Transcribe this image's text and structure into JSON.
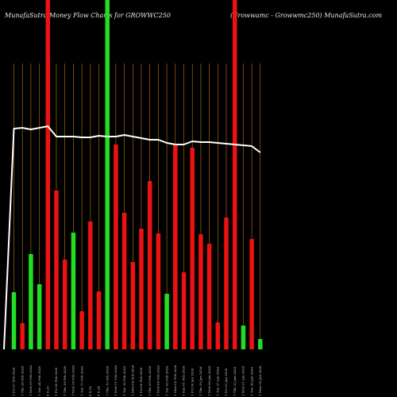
{
  "chart_data": {
    "type": "bar",
    "title_left": "MunafaSutra  Money Flow  Charts for GROWWC250",
    "title_right": "(Growwamc  -  Growwmc250) MunafaSutra.com",
    "ylim": [
      0,
      440
    ],
    "line_ylim": [
      0,
      440
    ],
    "grid": "vertical",
    "colors": {
      "up": "#22dd22",
      "down": "#ee1111",
      "grid": "#c07818",
      "line": "#ffffff",
      "background": "#000000"
    },
    "categories": [
      "Fri 27 Feb 2026",
      "Thu 26 Feb 2026",
      "Wed 25 Feb 2026",
      "Tue 24 Feb 2026",
      "Mon 23 Feb 2026",
      "Fri 20 Feb 2026",
      "Thu 19 Feb 2026",
      "Wed 18 Feb 2026",
      "Tue 17 Feb 2026",
      "Mon 16 Feb 2026",
      "Fri 13 Feb 2026",
      "Thu 12 Feb 2026",
      "Wed 11 Feb 2026",
      "Tue 10 Feb 2026",
      "Mon 09 Feb 2026",
      "Fri 06 Feb 2026",
      "Thu 05 Feb 2026",
      "Wed 04 Feb 2026",
      "Tue 03 Feb 2026",
      "Mon 02 Feb 2026",
      "Sun 01 Feb 2026",
      "Fri 30 Jan 2026",
      "Thu 29 Jan 2026",
      "Wed 28 Jan 2026",
      "Tue 27 Jan 2026",
      "Fri 23 Jan 2026",
      "Thu 22 Jan 2026",
      "Wed 21 Jan 2026",
      "Tue 20 Jan 2026",
      "Mon 19 Jan 2026"
    ],
    "xtick_labels": [
      "1 Fri 27 Feb 2026",
      "1 Thu 26 Feb 2026",
      "1 Wed 25 Feb 2026",
      "1 Tue 24 Feb 2026",
      "0    9.25",
      "1 Fri 20 Feb 2026",
      "1 Thu 19 Feb 2026",
      "1 Wed 18 Feb 2026",
      "1 Tue 17 Feb 2026",
      "0    9.18",
      "0    9.24",
      "1 Thu 12 Feb 2026",
      "1 Wed 11 Feb 2026",
      "1 Tue 10 Feb 2026",
      "1 Mon 09 Feb 2026",
      "1 Fri 06 Feb 2026",
      "1 Thu 05 Feb 2026",
      "1 Wed 04 Feb 2026",
      "1 Tue 03 Feb 2026",
      "1 Mon 02 Feb 2026",
      "1 Sun 01 Feb 2026",
      "1 Fri 30 Jan 2026",
      "1 Thu 29 Jan 2026",
      "1 Wed 28 Jan 2026",
      "1 Tue 27 Jan 2026",
      "1 Fri 23 Jan 2026",
      "1 Thu 22 Jan 2026",
      "1 Wed 21 Jan 2026",
      "1 Tue 20 Jan 2026",
      "1 Mon 19 Jan 2026"
    ],
    "bars": [
      {
        "value": 72,
        "color": "up"
      },
      {
        "value": 33,
        "color": "down"
      },
      {
        "value": 120,
        "color": "up"
      },
      {
        "value": 82,
        "color": "up"
      },
      {
        "value": 440,
        "color": "down"
      },
      {
        "value": 200,
        "color": "down"
      },
      {
        "value": 113,
        "color": "down"
      },
      {
        "value": 147,
        "color": "up"
      },
      {
        "value": 48,
        "color": "down"
      },
      {
        "value": 161,
        "color": "down"
      },
      {
        "value": 73,
        "color": "down"
      },
      {
        "value": 440,
        "color": "up"
      },
      {
        "value": 258,
        "color": "down"
      },
      {
        "value": 172,
        "color": "down"
      },
      {
        "value": 110,
        "color": "down"
      },
      {
        "value": 152,
        "color": "down"
      },
      {
        "value": 212,
        "color": "down"
      },
      {
        "value": 146,
        "color": "down"
      },
      {
        "value": 70,
        "color": "up"
      },
      {
        "value": 259,
        "color": "down"
      },
      {
        "value": 97,
        "color": "down"
      },
      {
        "value": 254,
        "color": "down"
      },
      {
        "value": 145,
        "color": "down"
      },
      {
        "value": 133,
        "color": "down"
      },
      {
        "value": 34,
        "color": "down"
      },
      {
        "value": 166,
        "color": "down"
      },
      {
        "value": 440,
        "color": "down"
      },
      {
        "value": 30,
        "color": "up"
      },
      {
        "value": 139,
        "color": "down"
      },
      {
        "value": 13,
        "color": "up"
      }
    ],
    "line": [
      278,
      279,
      277,
      279,
      281,
      268,
      268,
      268,
      267,
      267,
      269,
      268,
      268,
      270,
      268,
      266,
      264,
      264,
      260,
      258,
      258,
      262,
      261,
      261,
      260,
      259,
      258,
      257,
      256,
      248
    ]
  }
}
